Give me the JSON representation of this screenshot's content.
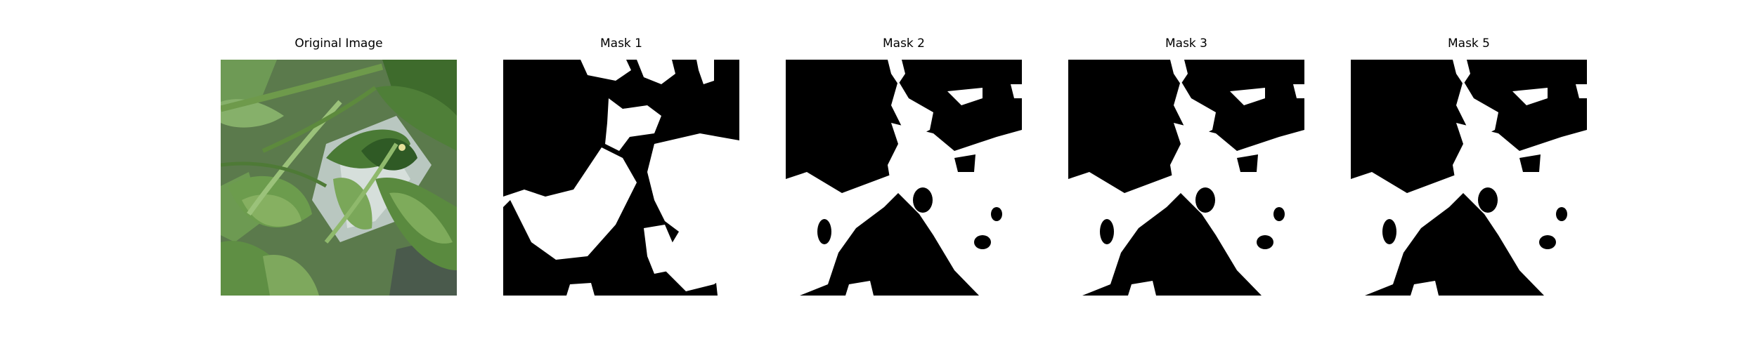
{
  "figure": {
    "panels": [
      {
        "title": "Original Image",
        "kind": "photo",
        "subject": "green pepper plant leaves and stems"
      },
      {
        "title": "Mask 1",
        "kind": "binary-mask"
      },
      {
        "title": "Mask 2",
        "kind": "binary-mask"
      },
      {
        "title": "Mask 3",
        "kind": "binary-mask"
      },
      {
        "title": "Mask 5",
        "kind": "binary-mask"
      }
    ],
    "colors": {
      "mask_foreground": "#ffffff",
      "mask_background": "#000000",
      "leaf_dark": "#3f6a2e",
      "leaf_mid": "#5e8c43",
      "leaf_light": "#8db56a",
      "background_glare": "#c9d3cf"
    }
  }
}
